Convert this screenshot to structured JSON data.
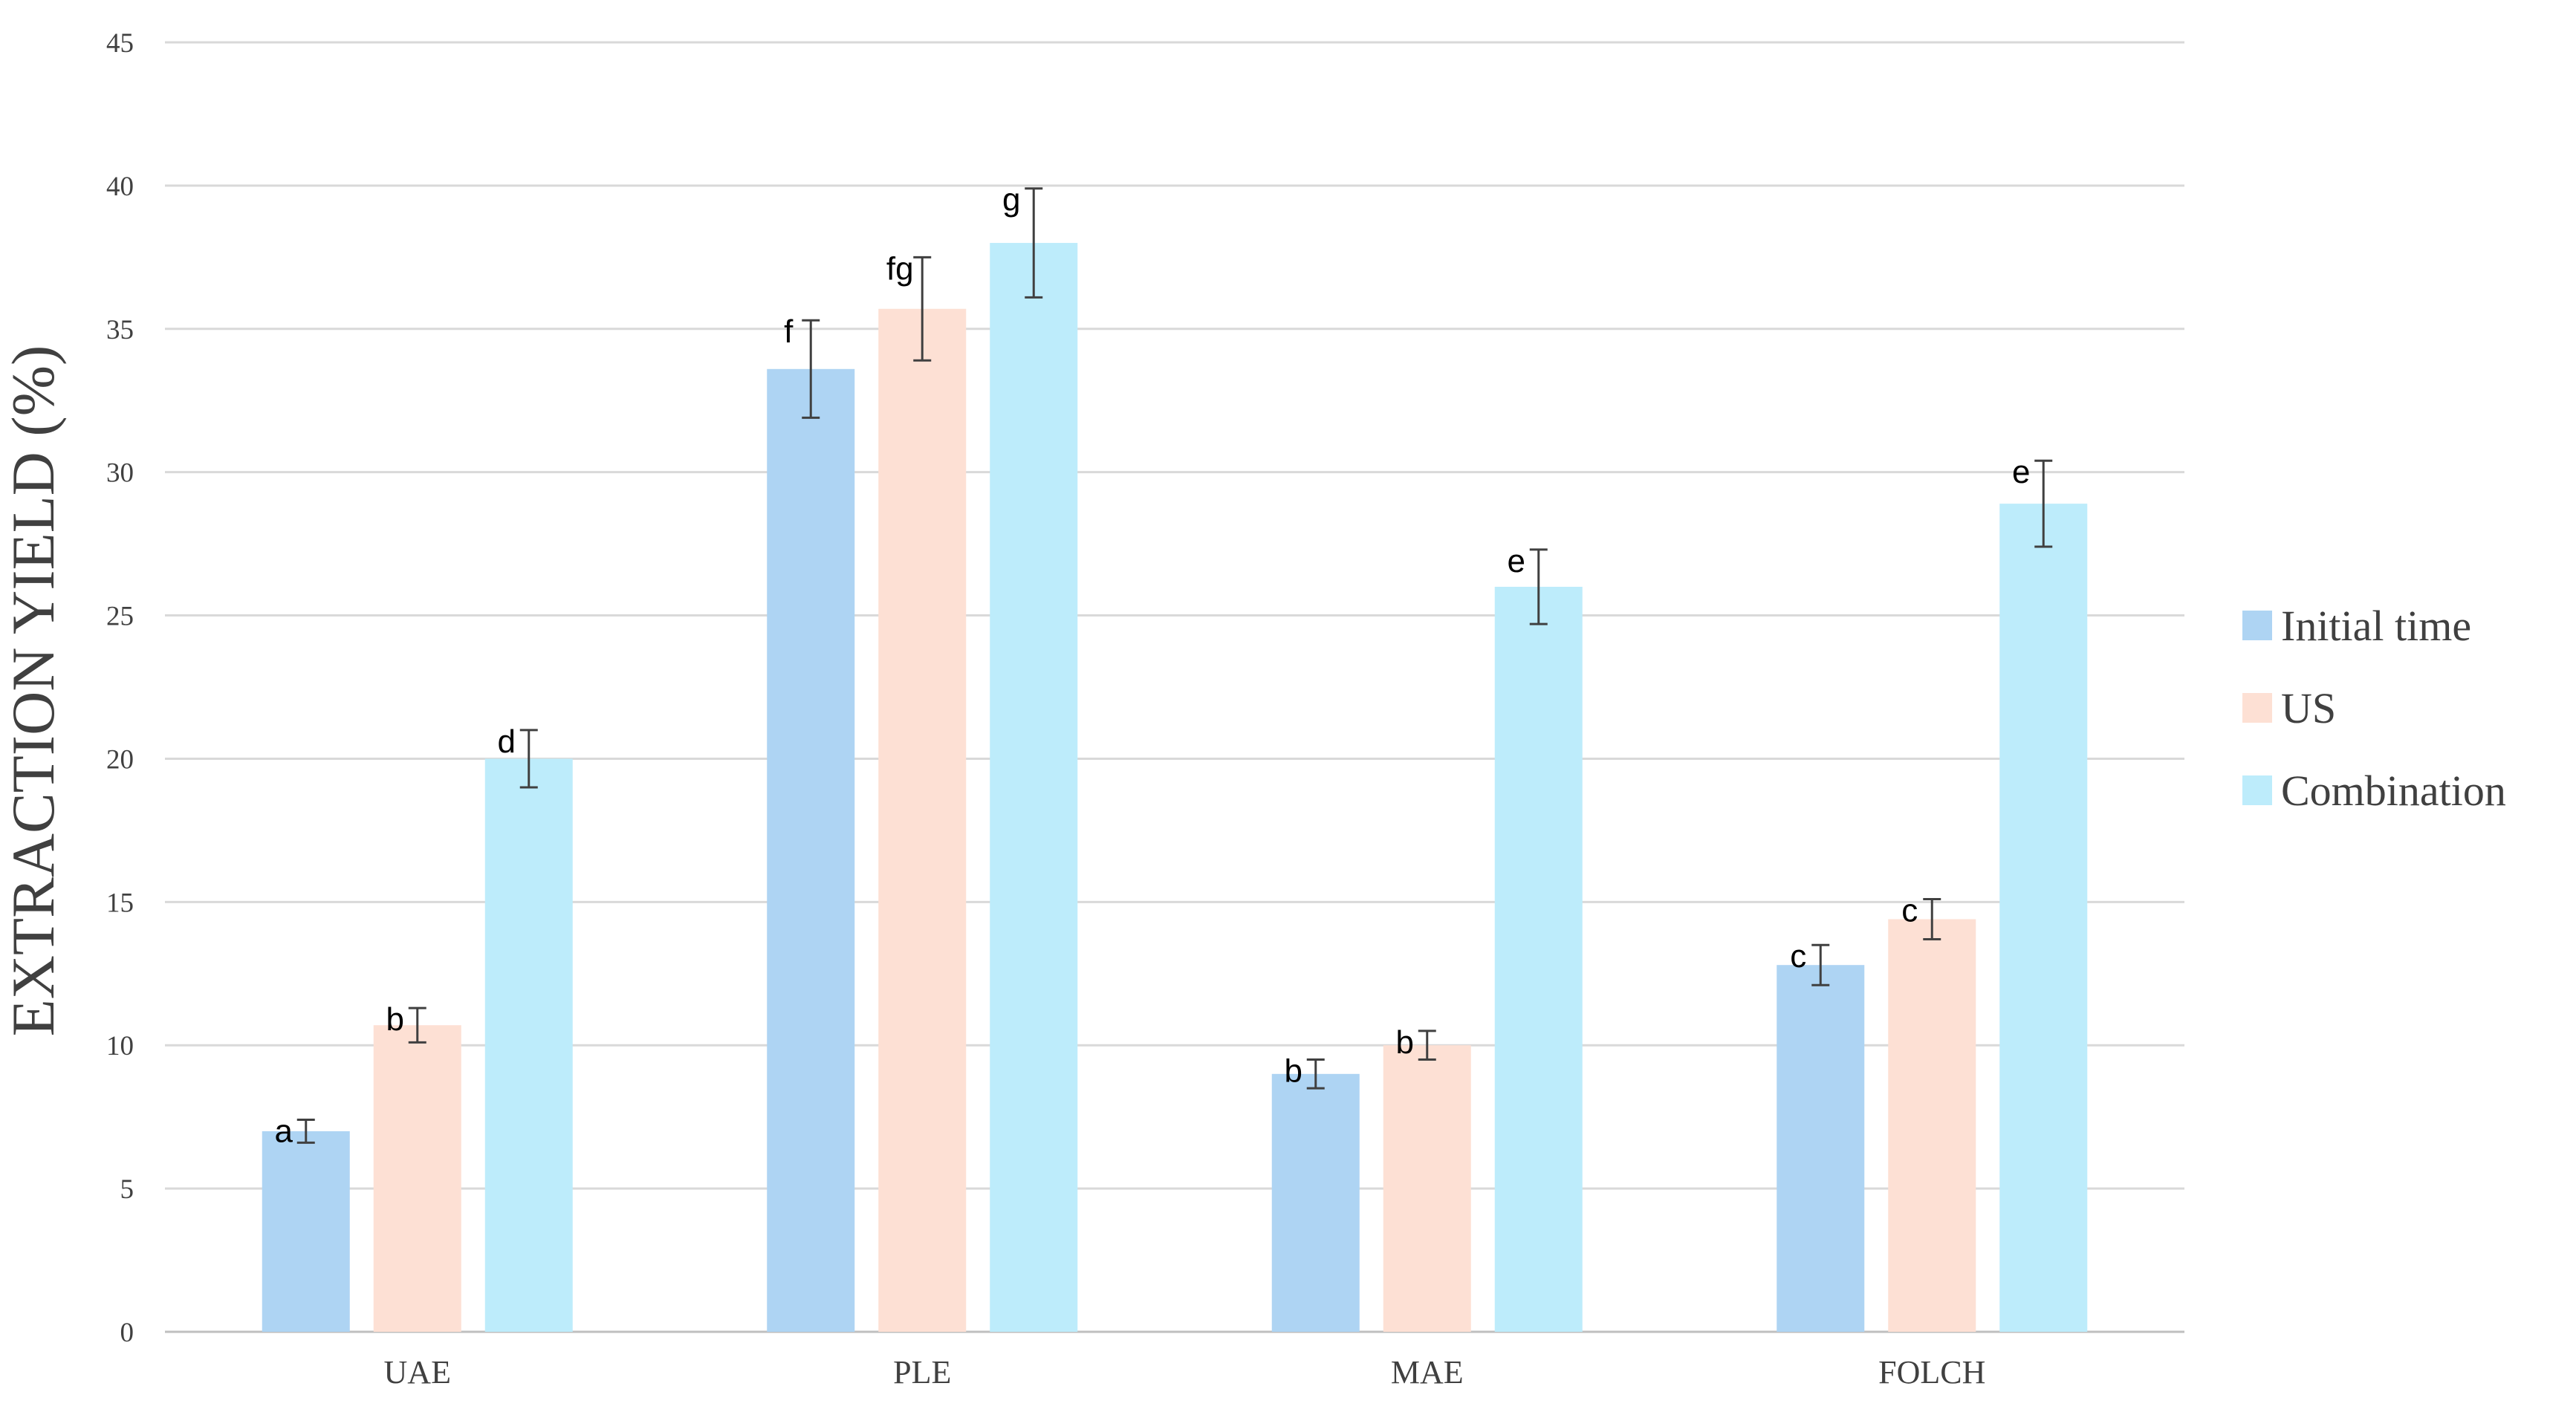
{
  "chart_data": {
    "type": "bar",
    "title": "",
    "xlabel": "",
    "ylabel": "EXTRACTION YIELD (%)",
    "ylim": [
      0,
      45
    ],
    "yticks": [
      0,
      5,
      10,
      15,
      20,
      25,
      30,
      35,
      40,
      45
    ],
    "grid": true,
    "legend_position": "right",
    "categories": [
      "UAE",
      "PLE",
      "MAE",
      "FOLCH"
    ],
    "series": [
      {
        "name": "Initial time",
        "color": "#AED4F3",
        "values": [
          7.0,
          33.6,
          9.0,
          12.8
        ],
        "errors": [
          0.4,
          1.7,
          0.5,
          0.7
        ],
        "labels": [
          "a",
          "f",
          "b",
          "c"
        ]
      },
      {
        "name": "US",
        "color": "#FDE0D4",
        "values": [
          10.7,
          35.7,
          10.0,
          14.4
        ],
        "errors": [
          0.6,
          1.8,
          0.5,
          0.7
        ],
        "labels": [
          "b",
          "fg",
          "b",
          "c"
        ]
      },
      {
        "name": "Combination",
        "color": "#BDECFB",
        "values": [
          20.0,
          38.0,
          26.0,
          28.9
        ],
        "errors": [
          1.0,
          1.9,
          1.3,
          1.5
        ],
        "labels": [
          "d",
          "g",
          "e",
          "e"
        ]
      }
    ]
  }
}
